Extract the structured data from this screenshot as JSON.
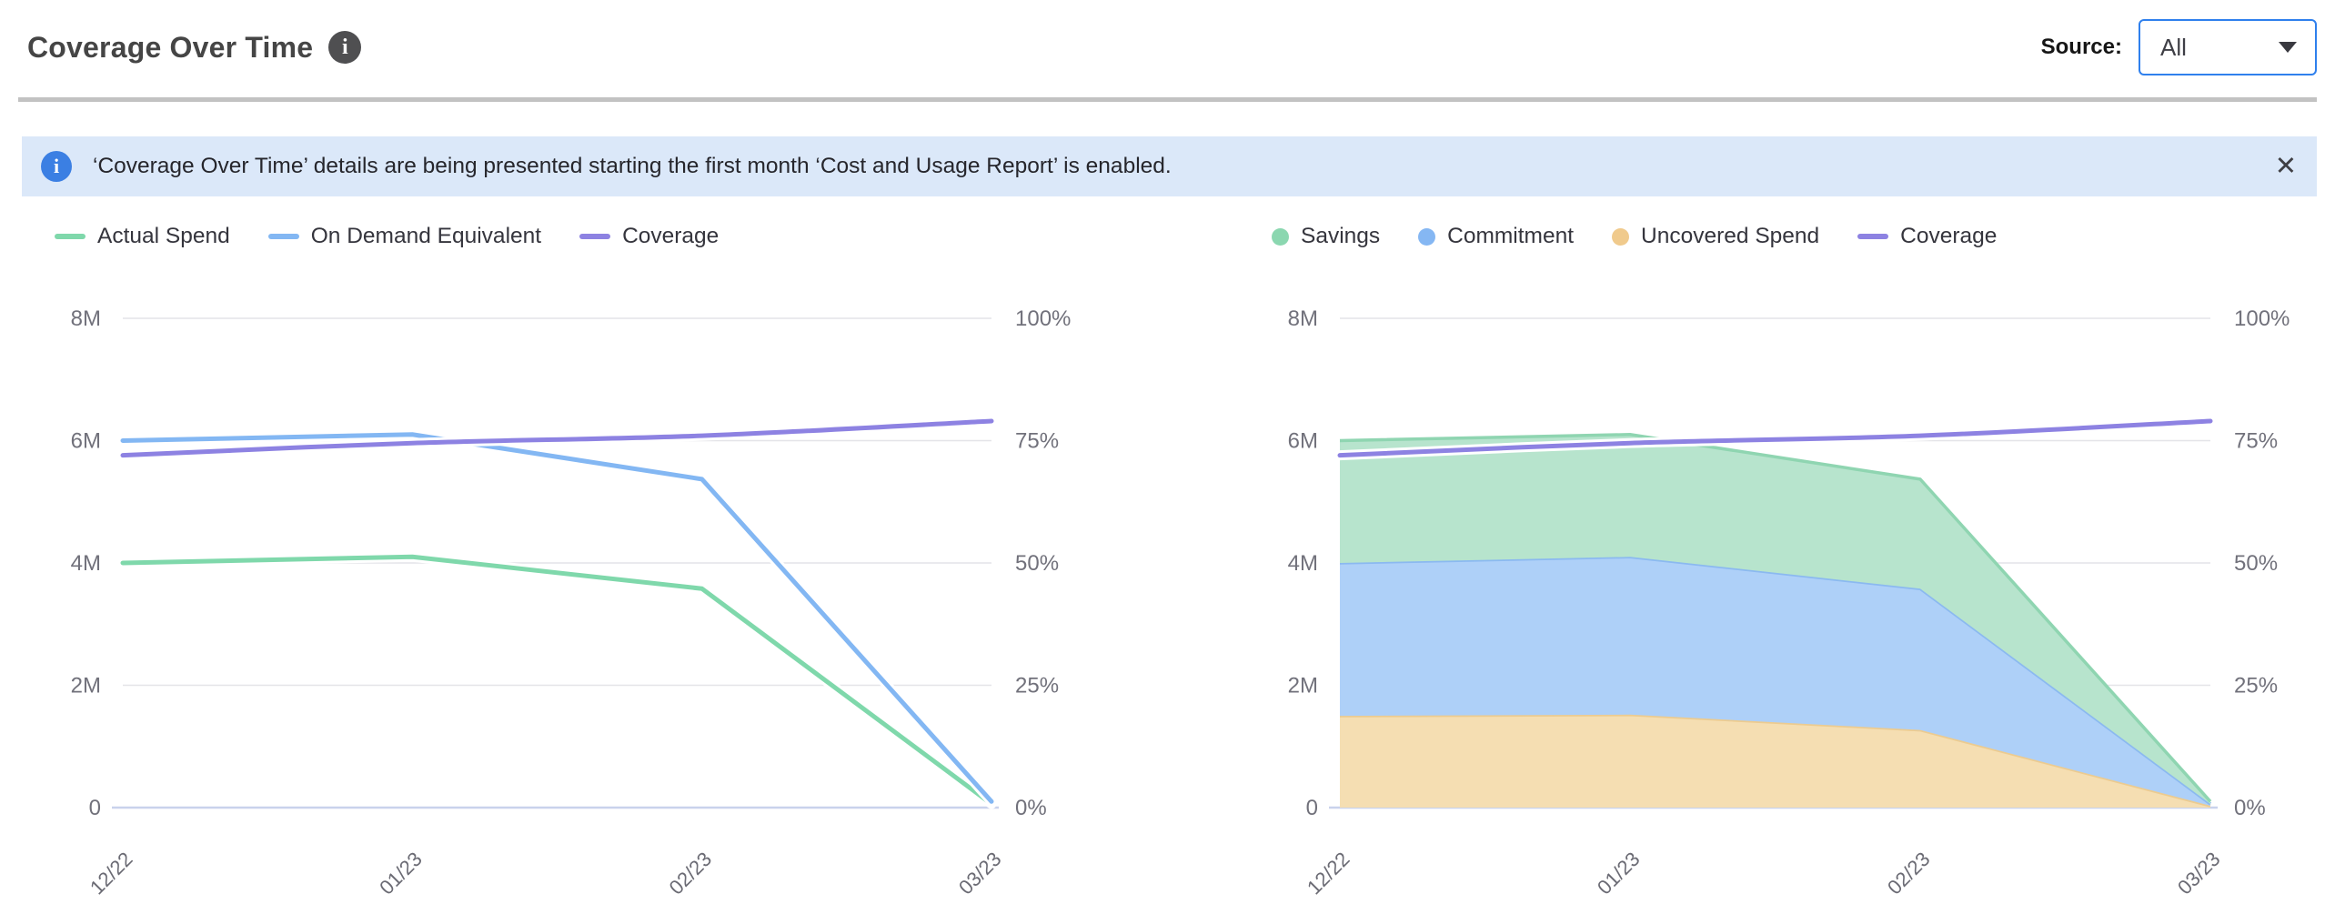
{
  "header": {
    "title": "Coverage Over Time",
    "info_icon": "info-circle",
    "source_label": "Source:",
    "source_value": "All"
  },
  "banner": {
    "icon": "info-circle",
    "message": "‘Coverage Over Time’ details are being presented starting the first month ‘Cost and Usage Report’ is enabled.",
    "close_label": "✕"
  },
  "colors": {
    "accent_blue": "#2f80ed",
    "banner_bg": "#dbe8f9",
    "banner_icon_bg": "#3b7fe3",
    "grid": "#e4e4e8",
    "baseline": "#c9d2ec",
    "axis_text": "#71717b",
    "legend_text": "#35353d"
  },
  "chart_data": [
    {
      "type": "line",
      "title": "",
      "xlabel": "",
      "ylabel": "",
      "categories": [
        "12/22",
        "01/23",
        "02/23",
        "03/23"
      ],
      "left_axis": {
        "ticks": [
          "8M",
          "6M",
          "4M",
          "2M",
          "0"
        ],
        "ylim": [
          0,
          8
        ],
        "unit": "millions USD"
      },
      "right_axis": {
        "ticks": [
          "100%",
          "75%",
          "50%",
          "25%",
          "0%"
        ],
        "ylim": [
          0,
          100
        ],
        "unit": "percent"
      },
      "grid": true,
      "legend_position": "top-left",
      "series": [
        {
          "name": "Actual Spend",
          "axis": "left",
          "marker": "line",
          "color": "#7fd8ab",
          "values": [
            4.0,
            4.1,
            3.58,
            0.06
          ]
        },
        {
          "name": "On Demand Equivalent",
          "axis": "left",
          "marker": "line",
          "color": "#83b7f3",
          "values": [
            6.0,
            6.1,
            5.37,
            0.1
          ]
        },
        {
          "name": "Coverage",
          "axis": "right",
          "marker": "line",
          "smooth": true,
          "color": "#8d82e2",
          "values": [
            72,
            74.5,
            76,
            79
          ]
        }
      ]
    },
    {
      "type": "area",
      "title": "",
      "xlabel": "",
      "ylabel": "",
      "categories": [
        "12/22",
        "01/23",
        "02/23",
        "03/23"
      ],
      "left_axis": {
        "ticks": [
          "8M",
          "6M",
          "4M",
          "2M",
          "0"
        ],
        "ylim": [
          0,
          8
        ],
        "unit": "millions USD"
      },
      "right_axis": {
        "ticks": [
          "100%",
          "75%",
          "50%",
          "25%",
          "0%"
        ],
        "ylim": [
          0,
          100
        ],
        "unit": "percent"
      },
      "grid": true,
      "legend_position": "top-left",
      "series": [
        {
          "name": "Savings",
          "axis": "left",
          "marker": "circle",
          "stacked": true,
          "color": "#8bd7b0",
          "fill": "#b7e4cd",
          "stroke": "#8fd5b1",
          "values": [
            2.0,
            2.0,
            1.79,
            0.04
          ]
        },
        {
          "name": "Commitment",
          "axis": "left",
          "marker": "circle",
          "stacked": true,
          "color": "#85b7f3",
          "fill": "#aed0f8",
          "stroke": "#8bb9f0",
          "values": [
            2.5,
            2.58,
            2.31,
            0.03
          ]
        },
        {
          "name": "Uncovered Spend",
          "axis": "left",
          "marker": "circle",
          "stacked": true,
          "color": "#f0ca8c",
          "fill": "#f5deb2",
          "stroke": "#eccb90",
          "values": [
            1.5,
            1.52,
            1.27,
            0.03
          ]
        },
        {
          "name": "Coverage",
          "axis": "right",
          "marker": "line",
          "smooth": true,
          "color": "#8d82e2",
          "values": [
            72,
            74.5,
            76,
            79
          ]
        }
      ]
    }
  ]
}
